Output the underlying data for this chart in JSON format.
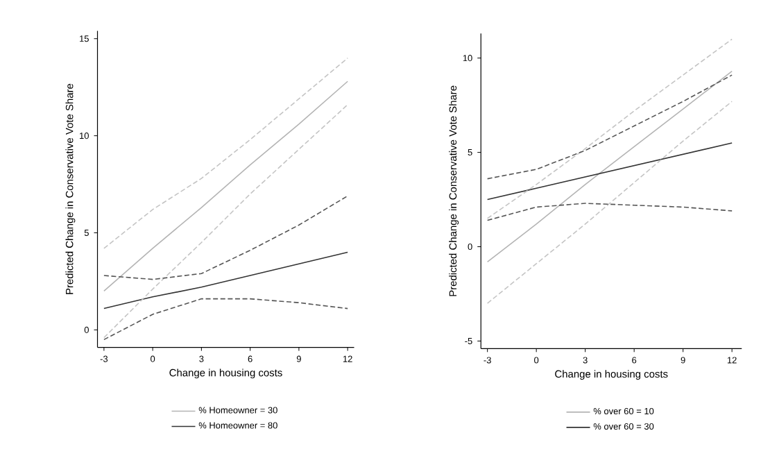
{
  "chart_data": [
    {
      "type": "line",
      "xlabel": "Change in housing costs",
      "ylabel": "Predicted Change in Conservative Vote Share",
      "x": [
        -3,
        0,
        3,
        6,
        9,
        12
      ],
      "xlim": [
        -3.4,
        12.4
      ],
      "ylim": [
        -0.9,
        15.4
      ],
      "xticks": [
        -3,
        0,
        3,
        6,
        9,
        12
      ],
      "yticks": [
        0,
        5,
        10,
        15
      ],
      "grid": false,
      "legend": "bottom",
      "marker": "none",
      "series": [
        {
          "name": "% Homeowner = 30",
          "color": "#b4b4b4",
          "line_style": "solid",
          "values": [
            2.0,
            4.2,
            6.3,
            8.5,
            10.6,
            12.8
          ]
        },
        {
          "name": "% Homeowner = 80",
          "color": "#333333",
          "line_style": "solid",
          "values": [
            1.1,
            1.7,
            2.2,
            2.8,
            3.4,
            4.0
          ]
        },
        {
          "color": "#c4c4c4",
          "line_style": "dashed",
          "values": [
            4.2,
            6.2,
            7.8,
            9.8,
            11.9,
            14.0
          ]
        },
        {
          "color": "#c4c4c4",
          "line_style": "dashed",
          "values": [
            -0.4,
            2.1,
            4.5,
            7.0,
            9.3,
            11.6
          ]
        },
        {
          "color": "#555555",
          "line_style": "dashed",
          "values": [
            2.8,
            2.6,
            2.9,
            4.1,
            5.4,
            6.9
          ]
        },
        {
          "color": "#555555",
          "line_style": "dashed",
          "values": [
            -0.5,
            0.8,
            1.6,
            1.6,
            1.4,
            1.1
          ]
        }
      ]
    },
    {
      "type": "line",
      "xlabel": "Change in housing costs",
      "ylabel": "Predicted Change in Conservative Vote Share",
      "x": [
        -3,
        0,
        3,
        6,
        9,
        12
      ],
      "xlim": [
        -3.4,
        12.6
      ],
      "ylim": [
        -5.4,
        11.3
      ],
      "xticks": [
        -3,
        0,
        3,
        6,
        9,
        12
      ],
      "yticks": [
        -5,
        0,
        5,
        10
      ],
      "grid": false,
      "legend": "bottom",
      "marker": "none",
      "series": [
        {
          "name": "% over 60 = 10",
          "color": "#b4b4b4",
          "line_style": "solid",
          "values": [
            -0.8,
            1.2,
            3.3,
            5.3,
            7.3,
            9.3
          ]
        },
        {
          "name": "% over 60 = 30",
          "color": "#333333",
          "line_style": "solid",
          "values": [
            2.5,
            3.1,
            3.7,
            4.3,
            4.9,
            5.5
          ]
        },
        {
          "color": "#c4c4c4",
          "line_style": "dashed",
          "values": [
            1.5,
            3.3,
            5.2,
            7.2,
            9.1,
            11.0
          ]
        },
        {
          "color": "#c4c4c4",
          "line_style": "dashed",
          "values": [
            -3.0,
            -0.9,
            1.2,
            3.4,
            5.6,
            7.7
          ]
        },
        {
          "color": "#555555",
          "line_style": "dashed",
          "values": [
            3.6,
            4.1,
            5.1,
            6.4,
            7.7,
            9.1
          ]
        },
        {
          "color": "#555555",
          "line_style": "dashed",
          "values": [
            1.4,
            2.1,
            2.3,
            2.2,
            2.1,
            1.9
          ]
        }
      ]
    }
  ]
}
